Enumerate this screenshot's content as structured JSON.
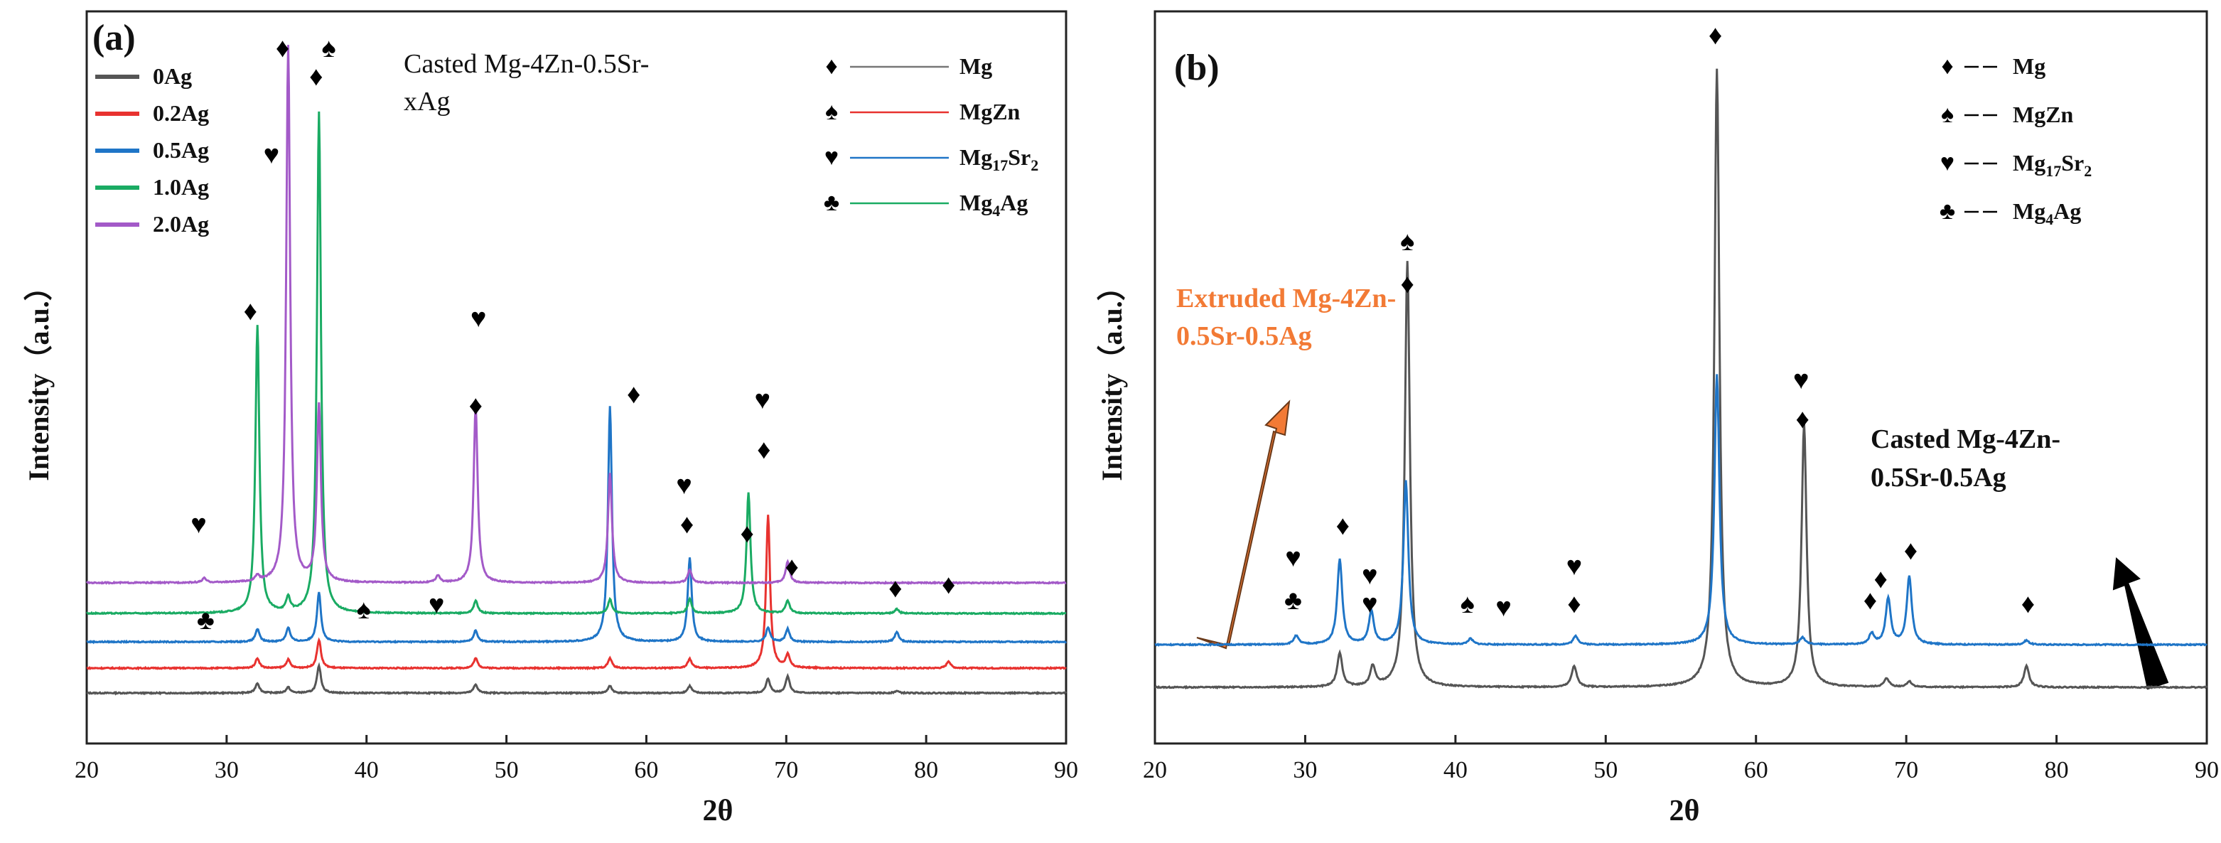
{
  "chart_data": [
    {
      "type": "line",
      "panel_label": "(a)",
      "annotation": "Casted Mg-4Zn-0.5Sr-xAg",
      "annotation_lines": [
        "Casted Mg-4Zn-0.5Sr-",
        "xAg"
      ],
      "xlabel": "2θ",
      "ylabel": "Intensity（a.u.）",
      "xlim": [
        20,
        90
      ],
      "xticks": [
        20,
        30,
        40,
        50,
        60,
        70,
        80,
        90
      ],
      "y_ticks_shown": false,
      "grid": false,
      "legend_position": "top-left",
      "series": [
        {
          "name": "0Ag",
          "color": "#555555",
          "baseline": 0,
          "peaks": [
            [
              32.2,
              14
            ],
            [
              34.4,
              8
            ],
            [
              36.6,
              38
            ],
            [
              47.8,
              12
            ],
            [
              57.4,
              10
            ],
            [
              63.1,
              10
            ],
            [
              68.7,
              20
            ],
            [
              70.1,
              24
            ],
            [
              77.9,
              3
            ]
          ]
        },
        {
          "name": "0.2Ag",
          "color": "#e8322f",
          "baseline": 35,
          "peaks": [
            [
              32.2,
              14
            ],
            [
              34.4,
              12
            ],
            [
              36.6,
              40
            ],
            [
              47.8,
              14
            ],
            [
              57.4,
              14
            ],
            [
              63.1,
              13
            ],
            [
              68.7,
              215
            ],
            [
              70.1,
              18
            ],
            [
              81.6,
              10
            ]
          ]
        },
        {
          "name": "0.5Ag",
          "color": "#1f75c7",
          "baseline": 72,
          "peaks": [
            [
              32.2,
              18
            ],
            [
              34.4,
              20
            ],
            [
              36.6,
              70
            ],
            [
              47.8,
              16
            ],
            [
              57.4,
              332
            ],
            [
              63.1,
              118
            ],
            [
              68.7,
              20
            ],
            [
              70.1,
              18
            ],
            [
              77.9,
              14
            ]
          ]
        },
        {
          "name": "1.0Ag",
          "color": "#1aab63",
          "baseline": 112,
          "peaks": [
            [
              32.2,
              405
            ],
            [
              34.4,
              20
            ],
            [
              36.6,
              705
            ],
            [
              47.8,
              18
            ],
            [
              57.4,
              20
            ],
            [
              63.1,
              20
            ],
            [
              67.3,
              170
            ],
            [
              70.1,
              18
            ],
            [
              77.9,
              6
            ]
          ]
        },
        {
          "name": "2.0Ag",
          "color": "#a35ac8",
          "baseline": 155,
          "peaks": [
            [
              28.4,
              6
            ],
            [
              32.2,
              8
            ],
            [
              34.4,
              755
            ],
            [
              36.6,
              250
            ],
            [
              45.1,
              10
            ],
            [
              47.8,
              250
            ],
            [
              57.4,
              155
            ],
            [
              63.1,
              18
            ],
            [
              70.1,
              30
            ]
          ]
        }
      ],
      "phase_legend": [
        {
          "marker": "♦",
          "name": "Mg",
          "color": "#777777"
        },
        {
          "marker": "♠",
          "name": "MgZn",
          "color": "#e8322f"
        },
        {
          "marker": "♥",
          "name_main": "Mg",
          "sub1": "17",
          "mid": "Sr",
          "sub2": "2",
          "color": "#1f75c7"
        },
        {
          "marker": "♣",
          "name_main": "Mg",
          "sub1": "4",
          "mid": "Ag",
          "sub2": "",
          "color": "#1aab63"
        }
      ],
      "peak_markers": [
        {
          "x": 28.5,
          "y": 90,
          "symbol": "♣"
        },
        {
          "x": 28.0,
          "y": 225,
          "symbol": "♥"
        },
        {
          "x": 31.7,
          "y": 525,
          "symbol": "♦"
        },
        {
          "x": 34.0,
          "y": 895,
          "symbol": "♦"
        },
        {
          "x": 37.3,
          "y": 895,
          "symbol": "♠"
        },
        {
          "x": 33.2,
          "y": 745,
          "symbol": "♥"
        },
        {
          "x": 36.4,
          "y": 855,
          "symbol": "♦"
        },
        {
          "x": 39.8,
          "y": 105,
          "symbol": "♠"
        },
        {
          "x": 45.0,
          "y": 112,
          "symbol": "♥"
        },
        {
          "x": 47.8,
          "y": 392,
          "symbol": "♦"
        },
        {
          "x": 48.0,
          "y": 515,
          "symbol": "♥"
        },
        {
          "x": 59.1,
          "y": 408,
          "symbol": "♦"
        },
        {
          "x": 62.9,
          "y": 225,
          "symbol": "♦"
        },
        {
          "x": 62.7,
          "y": 280,
          "symbol": "♥"
        },
        {
          "x": 67.2,
          "y": 212,
          "symbol": "♦"
        },
        {
          "x": 68.4,
          "y": 330,
          "symbol": "♦"
        },
        {
          "x": 68.3,
          "y": 400,
          "symbol": "♥"
        },
        {
          "x": 70.4,
          "y": 165,
          "symbol": "♦"
        },
        {
          "x": 77.8,
          "y": 135,
          "symbol": "♦"
        },
        {
          "x": 81.6,
          "y": 140,
          "symbol": "♦"
        }
      ]
    },
    {
      "type": "line",
      "panel_label": "(b)",
      "annotation_extruded_lines": [
        "Extruded Mg-4Zn-",
        "0.5Sr-0.5Ag"
      ],
      "annotation_casted_lines": [
        "Casted Mg-4Zn-",
        "0.5Sr-0.5Ag"
      ],
      "xlabel": "2θ",
      "ylabel": "Intensity（a.u.）",
      "xlim": [
        20,
        90
      ],
      "xticks": [
        20,
        30,
        40,
        50,
        60,
        70,
        80,
        90
      ],
      "y_ticks_shown": false,
      "grid": false,
      "series": [
        {
          "name": "Casted",
          "color": "#555555",
          "baseline": 0,
          "peaks": [
            [
              32.3,
              48
            ],
            [
              34.5,
              28
            ],
            [
              36.8,
              600
            ],
            [
              47.9,
              30
            ],
            [
              57.4,
              870
            ],
            [
              63.2,
              370
            ],
            [
              68.7,
              12
            ],
            [
              70.2,
              8
            ],
            [
              78.0,
              30
            ]
          ]
        },
        {
          "name": "Extruded",
          "color": "#1f75c7",
          "baseline": 60,
          "peaks": [
            [
              29.4,
              12
            ],
            [
              32.3,
              120
            ],
            [
              34.4,
              46
            ],
            [
              36.7,
              230
            ],
            [
              41.0,
              8
            ],
            [
              48.0,
              12
            ],
            [
              57.4,
              380
            ],
            [
              63.1,
              10
            ],
            [
              67.7,
              15
            ],
            [
              68.8,
              65
            ],
            [
              70.2,
              95
            ],
            [
              78.0,
              6
            ]
          ]
        }
      ],
      "phase_legend": [
        {
          "marker": "♦",
          "name": "Mg"
        },
        {
          "marker": "♠",
          "name": "MgZn"
        },
        {
          "marker": "♥",
          "name_main": "Mg",
          "sub1": "17",
          "mid": "Sr",
          "sub2": "2"
        },
        {
          "marker": "♣",
          "name_main": "Mg",
          "sub1": "4",
          "mid": "Ag",
          "sub2": ""
        }
      ],
      "peak_markers": [
        {
          "x": 29.2,
          "y": 110,
          "symbol": "♣"
        },
        {
          "x": 29.2,
          "y": 170,
          "symbol": "♥"
        },
        {
          "x": 32.5,
          "y": 215,
          "symbol": "♦"
        },
        {
          "x": 34.3,
          "y": 105,
          "symbol": "♥"
        },
        {
          "x": 34.3,
          "y": 145,
          "symbol": "♥"
        },
        {
          "x": 36.8,
          "y": 555,
          "symbol": "♦"
        },
        {
          "x": 36.8,
          "y": 615,
          "symbol": "♠"
        },
        {
          "x": 40.8,
          "y": 105,
          "symbol": "♠"
        },
        {
          "x": 43.2,
          "y": 100,
          "symbol": "♥"
        },
        {
          "x": 47.9,
          "y": 105,
          "symbol": "♦"
        },
        {
          "x": 47.9,
          "y": 158,
          "symbol": "♥"
        },
        {
          "x": 57.3,
          "y": 905,
          "symbol": "♦"
        },
        {
          "x": 63.1,
          "y": 365,
          "symbol": "♦"
        },
        {
          "x": 63.0,
          "y": 420,
          "symbol": "♥"
        },
        {
          "x": 67.6,
          "y": 110,
          "symbol": "♦"
        },
        {
          "x": 68.3,
          "y": 140,
          "symbol": "♦"
        },
        {
          "x": 70.3,
          "y": 180,
          "symbol": "♦"
        },
        {
          "x": 78.1,
          "y": 105,
          "symbol": "♦"
        }
      ]
    }
  ]
}
